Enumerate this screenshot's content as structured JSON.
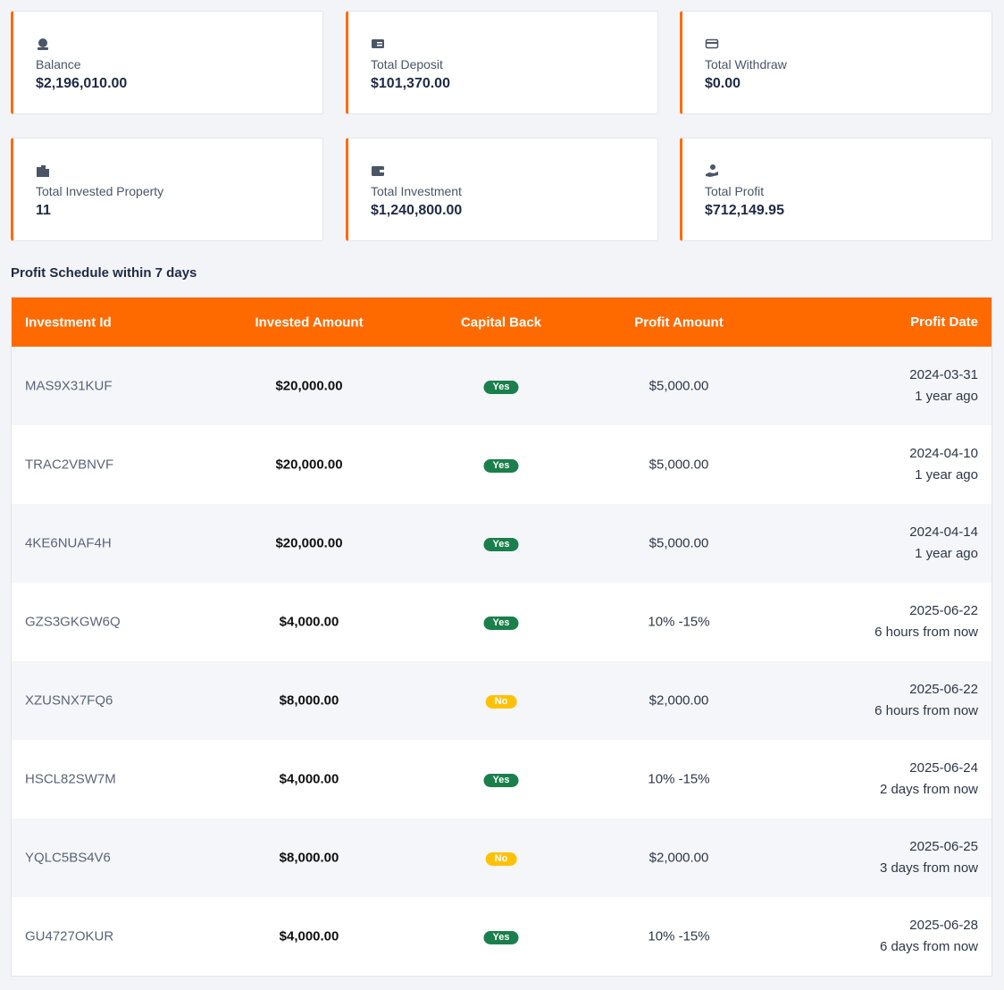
{
  "cards": [
    {
      "label": "Balance",
      "value": "$2,196,010.00"
    },
    {
      "label": "Total Deposit",
      "value": "$101,370.00"
    },
    {
      "label": "Total Withdraw",
      "value": "$0.00"
    },
    {
      "label": "Total Invested Property",
      "value": "11"
    },
    {
      "label": "Total Investment",
      "value": "$1,240,800.00"
    },
    {
      "label": "Total Profit",
      "value": "$712,149.95"
    }
  ],
  "section_title": "Profit Schedule within 7 days",
  "table": {
    "headers": [
      "Investment Id",
      "Invested Amount",
      "Capital Back",
      "Profit Amount",
      "Profit Date"
    ],
    "rows": [
      [
        "MAS9X31KUF",
        "$20,000.00",
        "Yes",
        "$5,000.00",
        "2024-03-31",
        "1 year ago"
      ],
      [
        "TRAC2VBNVF",
        "$20,000.00",
        "Yes",
        "$5,000.00",
        "2024-04-10",
        "1 year ago"
      ],
      [
        "4KE6NUAF4H",
        "$20,000.00",
        "Yes",
        "$5,000.00",
        "2024-04-14",
        "1 year ago"
      ],
      [
        "GZS3GKGW6Q",
        "$4,000.00",
        "Yes",
        "10% -15%",
        "2025-06-22",
        "6 hours from now"
      ],
      [
        "XZUSNX7FQ6",
        "$8,000.00",
        "No",
        "$2,000.00",
        "2025-06-22",
        "6 hours from now"
      ],
      [
        "HSCL82SW7M",
        "$4,000.00",
        "Yes",
        "10% -15%",
        "2025-06-24",
        "2 days from now"
      ],
      [
        "YQLC5BS4V6",
        "$8,000.00",
        "No",
        "$2,000.00",
        "2025-06-25",
        "3 days from now"
      ],
      [
        "GU4727OKUR",
        "$4,000.00",
        "Yes",
        "10% -15%",
        "2025-06-28",
        "6 days from now"
      ]
    ]
  }
}
